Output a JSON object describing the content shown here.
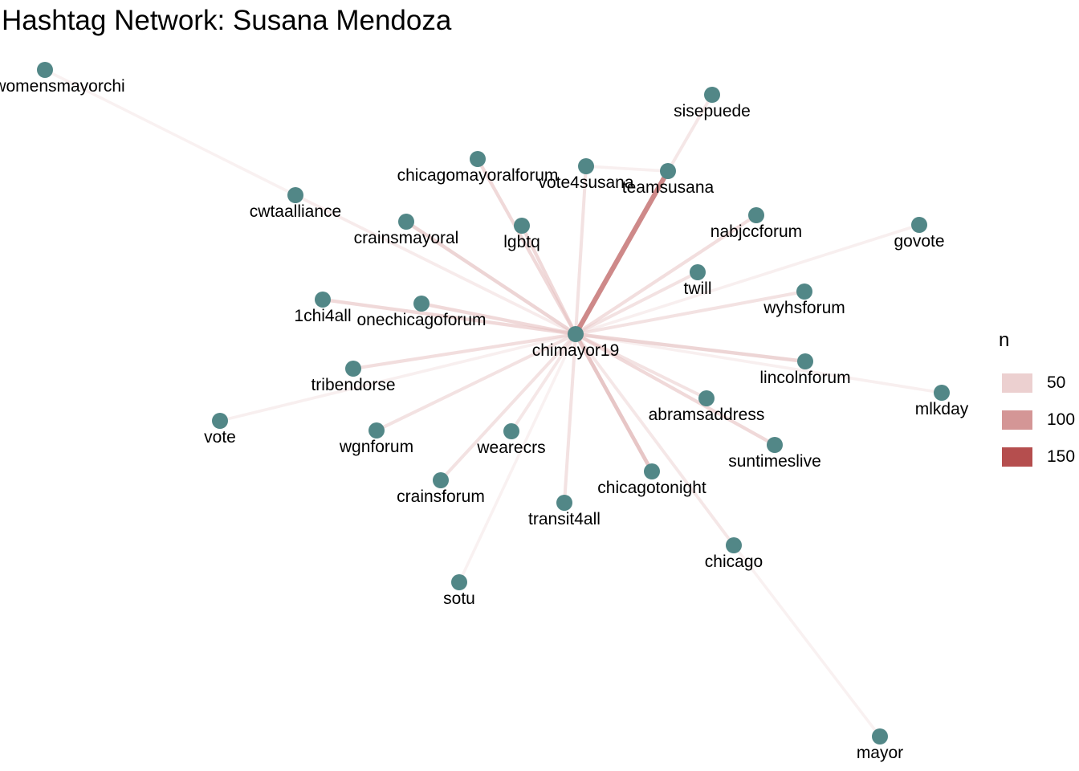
{
  "title": "Hashtag Network: Susana Mendoza",
  "legend": {
    "title": "n",
    "entries": [
      {
        "label": "50",
        "value": 50
      },
      {
        "label": "100",
        "value": 100
      },
      {
        "label": "150",
        "value": 150
      }
    ]
  },
  "colors": {
    "node": "#528787",
    "edge_low": "#f6e9e9",
    "edge_high": "#a62828"
  },
  "nodes": [
    {
      "id": "chimayor19",
      "label": "chimayor19"
    },
    {
      "id": "womensmayorchi",
      "label": "womensmayorchi"
    },
    {
      "id": "cwtaalliance",
      "label": "cwtaalliance"
    },
    {
      "id": "sisepuede",
      "label": "sisepuede"
    },
    {
      "id": "teamsusana",
      "label": "teamsusana"
    },
    {
      "id": "vote4susana",
      "label": "vote4susana"
    },
    {
      "id": "chicagomayoralforum",
      "label": "chicagomayoralforum"
    },
    {
      "id": "lgbtq",
      "label": "lgbtq"
    },
    {
      "id": "crainsmayoral",
      "label": "crainsmayoral"
    },
    {
      "id": "nabjccforum",
      "label": "nabjccforum"
    },
    {
      "id": "govote",
      "label": "govote"
    },
    {
      "id": "twill",
      "label": "twill"
    },
    {
      "id": "wyhsforum",
      "label": "wyhsforum"
    },
    {
      "id": "1chi4all",
      "label": "1chi4all"
    },
    {
      "id": "onechicagoforum",
      "label": "onechicagoforum"
    },
    {
      "id": "lincolnforum",
      "label": "lincolnforum"
    },
    {
      "id": "mlkday",
      "label": "mlkday"
    },
    {
      "id": "tribendorse",
      "label": "tribendorse"
    },
    {
      "id": "vote",
      "label": "vote"
    },
    {
      "id": "abramsaddress",
      "label": "abramsaddress"
    },
    {
      "id": "suntimeslive",
      "label": "suntimeslive"
    },
    {
      "id": "wgnforum",
      "label": "wgnforum"
    },
    {
      "id": "wearecrs",
      "label": "wearecrs"
    },
    {
      "id": "chicagotonight",
      "label": "chicagotonight"
    },
    {
      "id": "crainsforum",
      "label": "crainsforum"
    },
    {
      "id": "transit4all",
      "label": "transit4all"
    },
    {
      "id": "chicago",
      "label": "chicago"
    },
    {
      "id": "sotu",
      "label": "sotu"
    },
    {
      "id": "mayor",
      "label": "mayor"
    }
  ],
  "edges": [
    {
      "from": "chimayor19",
      "to": "teamsusana",
      "n": 110
    },
    {
      "from": "chimayor19",
      "to": "chicagotonight",
      "n": 60
    },
    {
      "from": "chimayor19",
      "to": "crainsmayoral",
      "n": 45
    },
    {
      "from": "chimayor19",
      "to": "lincolnforum",
      "n": 45
    },
    {
      "from": "chimayor19",
      "to": "lgbtq",
      "n": 40
    },
    {
      "from": "chimayor19",
      "to": "chicagomayoralforum",
      "n": 40
    },
    {
      "from": "chimayor19",
      "to": "1chi4all",
      "n": 40
    },
    {
      "from": "chimayor19",
      "to": "onechicagoforum",
      "n": 40
    },
    {
      "from": "chimayor19",
      "to": "suntimeslive",
      "n": 40
    },
    {
      "from": "chimayor19",
      "to": "tribendorse",
      "n": 35
    },
    {
      "from": "chimayor19",
      "to": "nabjccforum",
      "n": 35
    },
    {
      "from": "chimayor19",
      "to": "wgnforum",
      "n": 30
    },
    {
      "from": "chimayor19",
      "to": "twill",
      "n": 30
    },
    {
      "from": "chimayor19",
      "to": "wyhsforum",
      "n": 30
    },
    {
      "from": "chimayor19",
      "to": "abramsaddress",
      "n": 30
    },
    {
      "from": "chimayor19",
      "to": "vote4susana",
      "n": 30
    },
    {
      "from": "chimayor19",
      "to": "transit4all",
      "n": 30
    },
    {
      "from": "chimayor19",
      "to": "crainsforum",
      "n": 30
    },
    {
      "from": "chimayor19",
      "to": "wearecrs",
      "n": 25
    },
    {
      "from": "chimayor19",
      "to": "chicago",
      "n": 25
    },
    {
      "from": "teamsusana",
      "to": "sisepuede",
      "n": 25
    },
    {
      "from": "chimayor19",
      "to": "cwtaalliance",
      "n": 20
    },
    {
      "from": "chimayor19",
      "to": "govote",
      "n": 15
    },
    {
      "from": "chimayor19",
      "to": "mlkday",
      "n": 15
    },
    {
      "from": "chimayor19",
      "to": "vote",
      "n": 15
    },
    {
      "from": "chimayor19",
      "to": "sotu",
      "n": 12
    },
    {
      "from": "vote4susana",
      "to": "teamsusana",
      "n": 15
    },
    {
      "from": "cwtaalliance",
      "to": "womensmayorchi",
      "n": 12
    },
    {
      "from": "chicago",
      "to": "mayor",
      "n": 12
    }
  ]
}
